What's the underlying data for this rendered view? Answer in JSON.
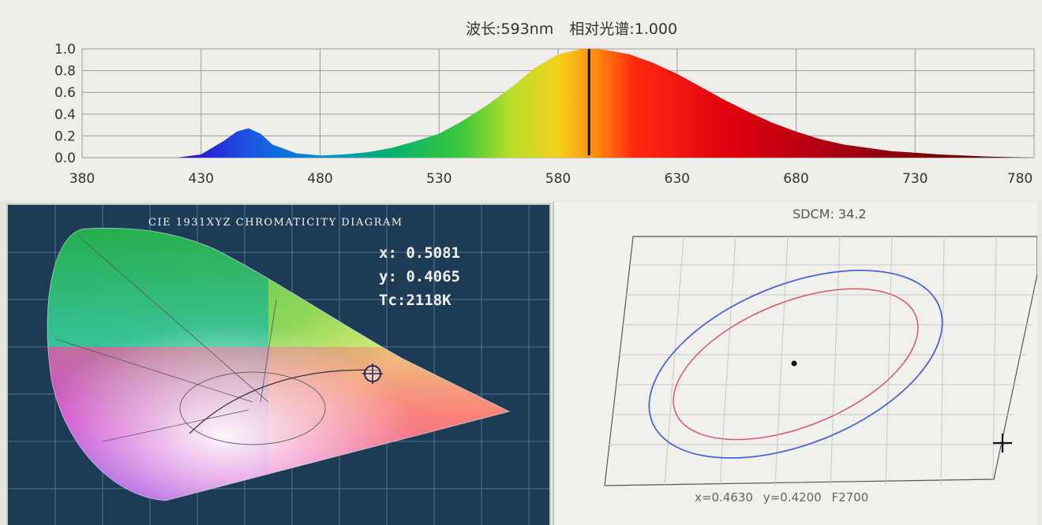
{
  "spectrum": {
    "wavelength_label": "波长:593nm",
    "relative_label": "相对光谱:1.000",
    "y_ticks": [
      "1.0",
      "0.8",
      "0.6",
      "0.4",
      "0.2",
      "0.0"
    ],
    "x_ticks": [
      "380",
      "430",
      "480",
      "530",
      "580",
      "630",
      "680",
      "730",
      "780"
    ]
  },
  "chart_data": {
    "type": "area",
    "title": "波长:593nm 相对光谱:1.000",
    "xlabel": "",
    "ylabel": "",
    "xlim": [
      380,
      780
    ],
    "ylim": [
      0,
      1.0
    ],
    "grid": true,
    "marker_wavelength": 593,
    "x": [
      420,
      430,
      440,
      445,
      450,
      455,
      460,
      470,
      480,
      490,
      500,
      510,
      520,
      530,
      540,
      550,
      560,
      570,
      580,
      590,
      595,
      600,
      610,
      620,
      630,
      640,
      650,
      660,
      670,
      680,
      690,
      700,
      720,
      740,
      760,
      780
    ],
    "y": [
      0.0,
      0.03,
      0.16,
      0.24,
      0.27,
      0.22,
      0.12,
      0.04,
      0.02,
      0.03,
      0.05,
      0.09,
      0.15,
      0.22,
      0.34,
      0.48,
      0.64,
      0.82,
      0.95,
      1.0,
      1.0,
      0.99,
      0.95,
      0.87,
      0.77,
      0.65,
      0.53,
      0.42,
      0.32,
      0.24,
      0.17,
      0.12,
      0.06,
      0.03,
      0.01,
      0.0
    ]
  },
  "cie": {
    "title": "CIE 1931XYZ CHROMATICITY DIAGRAM",
    "x_readout": "x: 0.5081",
    "y_readout": "y: 0.4065",
    "tc_readout": "Tc:2118K"
  },
  "sdcm": {
    "title": "SDCM:  34.2",
    "footer_x": "x=0.4630",
    "footer_y": "y=0.4200",
    "footer_code": "F2700"
  }
}
